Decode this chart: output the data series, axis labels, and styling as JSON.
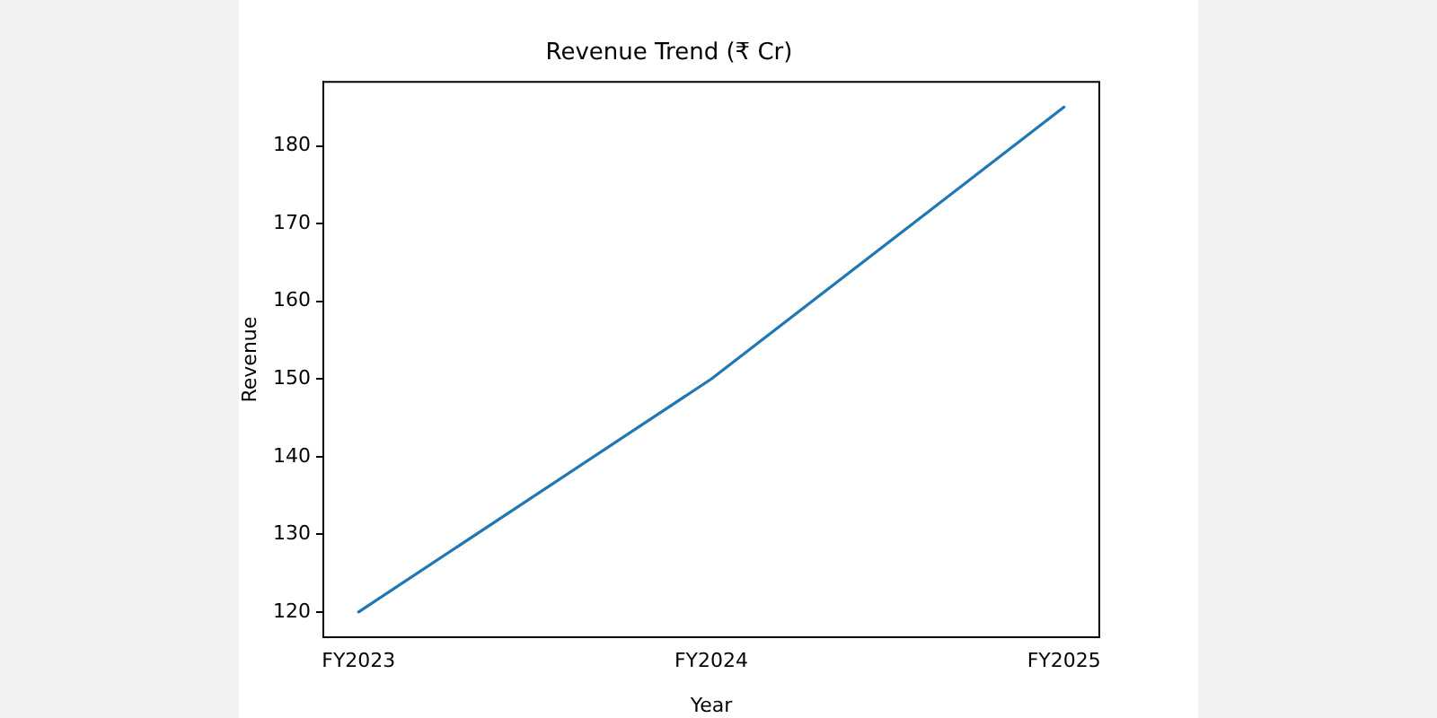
{
  "chart_data": {
    "type": "line",
    "title": "Revenue Trend (₹ Cr)",
    "xlabel": "Year",
    "ylabel": "Revenue",
    "categories": [
      "FY2023",
      "FY2024",
      "FY2025"
    ],
    "series": [
      {
        "color": "#1f77b4",
        "values": [
          120,
          150,
          185
        ]
      }
    ],
    "ylim": [
      116.75,
      188.25
    ],
    "yticks": [
      120,
      130,
      140,
      150,
      160,
      170,
      180
    ],
    "grid": false,
    "legend": false,
    "marker": "none",
    "line_style": "solid"
  }
}
